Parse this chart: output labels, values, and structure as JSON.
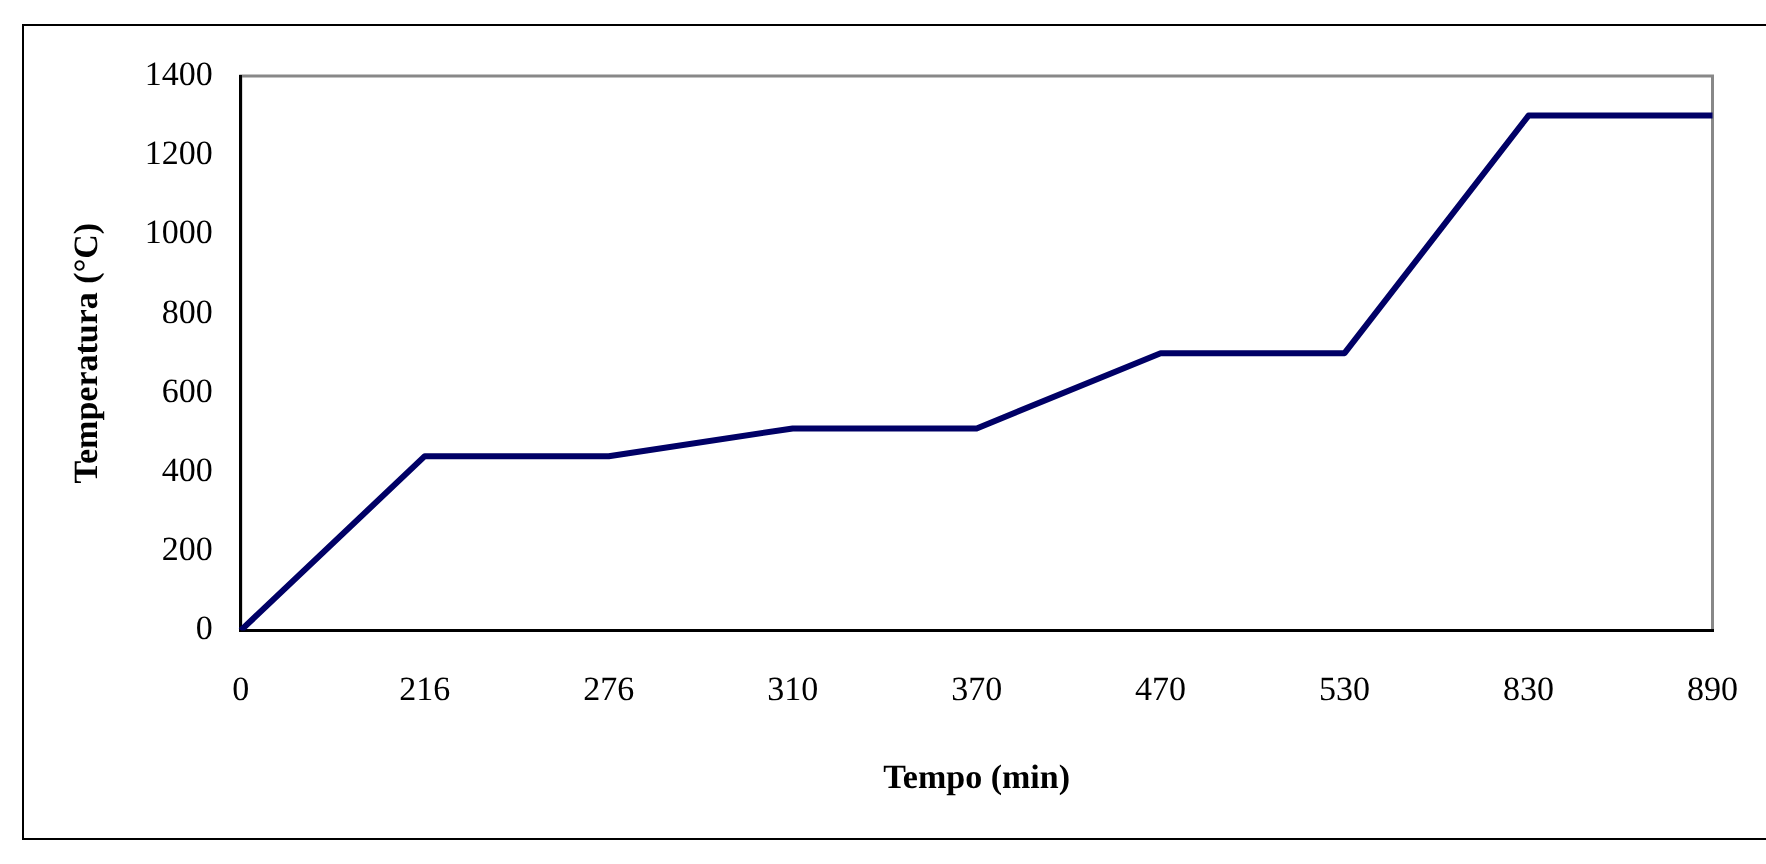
{
  "chart_data": {
    "type": "line",
    "xlabel": "Tempo (min)",
    "ylabel": "Temperatura (°C)",
    "categories": [
      "0",
      "216",
      "276",
      "310",
      "370",
      "470",
      "530",
      "830",
      "890"
    ],
    "values": [
      0,
      440,
      440,
      510,
      510,
      700,
      700,
      1300,
      1300
    ],
    "color": "#000066",
    "ylim": [
      0,
      1400
    ],
    "yticks": [
      0,
      200,
      400,
      600,
      800,
      1000,
      1200,
      1400
    ],
    "grid": false,
    "legend": false,
    "marker": "none",
    "line_style": "solid"
  }
}
